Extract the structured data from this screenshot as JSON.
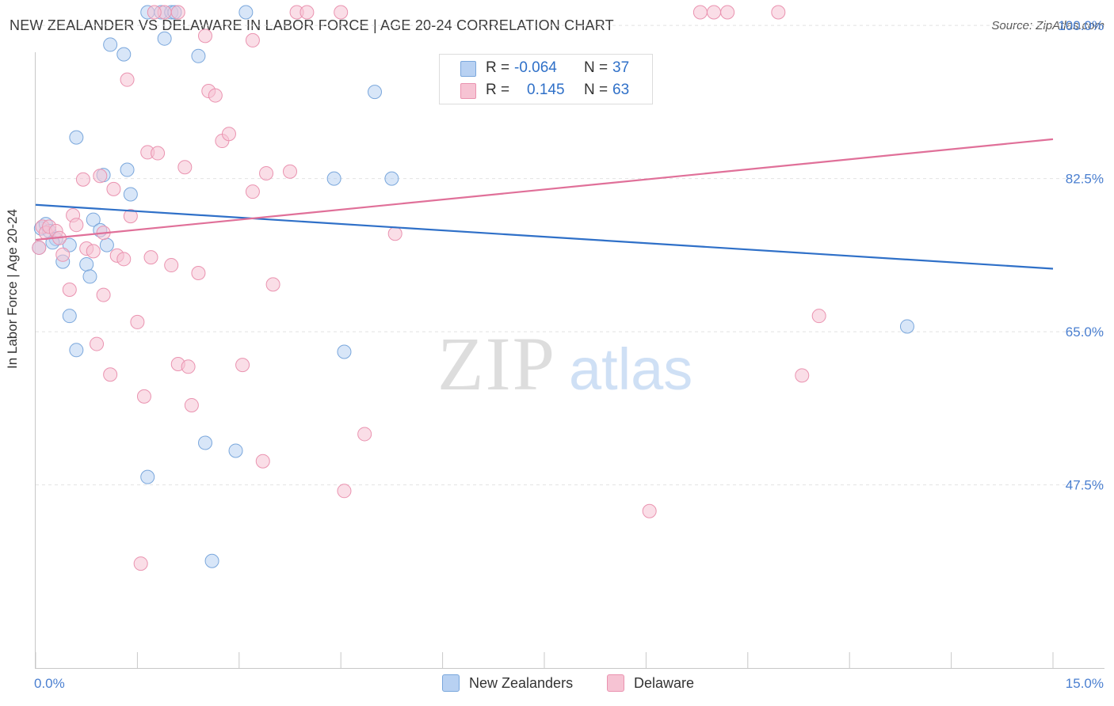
{
  "title": "NEW ZEALANDER VS DELAWARE IN LABOR FORCE | AGE 20-24 CORRELATION CHART",
  "source": {
    "prefix": "Source: ",
    "value": "ZipAtlas.com"
  },
  "watermark": {
    "zip": "ZIP",
    "atlas": "atlas"
  },
  "colors": {
    "blue_fill": "#b8d1f2",
    "blue_stroke": "#7aa7dc",
    "blue_line": "#2f70c8",
    "pink_fill": "#f6c3d3",
    "pink_stroke": "#ea93b0",
    "pink_line": "#e07099",
    "tick_label": "#4a7fd0"
  },
  "legend": {
    "r_label": "R =",
    "n_label": "N =",
    "blue": {
      "r": "-0.064",
      "n": "37"
    },
    "pink": {
      "r": "0.145",
      "n": "63"
    }
  },
  "bottom_legend": [
    "New Zealanders",
    "Delaware"
  ],
  "chart_data": {
    "type": "scatter",
    "title": "NEW ZEALANDER VS DELAWARE IN LABOR FORCE | AGE 20-24 CORRELATION CHART",
    "xlabel": "",
    "ylabel": "In Labor Force | Age 20-24",
    "xlim": [
      0,
      15
    ],
    "ylim": [
      31,
      102
    ],
    "x_tick_labels": [
      "0.0%",
      "15.0%"
    ],
    "x_tick_values": [
      0,
      15
    ],
    "y_tick_labels": [
      "100.0%",
      "82.5%",
      "65.0%",
      "47.5%"
    ],
    "y_tick_values": [
      100,
      82.5,
      65,
      47.5
    ],
    "grid": true,
    "series": [
      {
        "name": "New Zealanders",
        "color": "blue",
        "trend": {
          "x": [
            0,
            15
          ],
          "y": [
            79.5,
            72.2
          ]
        },
        "points": [
          [
            0.08,
            76.8
          ],
          [
            0.15,
            77.3
          ],
          [
            0.2,
            76.5
          ],
          [
            0.3,
            75.6
          ],
          [
            0.25,
            75.2
          ],
          [
            0.5,
            74.9
          ],
          [
            0.4,
            73.0
          ],
          [
            0.5,
            66.8
          ],
          [
            0.6,
            62.9
          ],
          [
            0.75,
            72.7
          ],
          [
            0.8,
            71.3
          ],
          [
            0.85,
            77.8
          ],
          [
            0.95,
            76.6
          ],
          [
            1.05,
            74.9
          ],
          [
            0.6,
            87.2
          ],
          [
            1.0,
            82.9
          ],
          [
            1.1,
            97.8
          ],
          [
            1.3,
            96.7
          ],
          [
            1.35,
            83.5
          ],
          [
            1.4,
            80.7
          ],
          [
            1.65,
            48.4
          ],
          [
            1.65,
            101.5
          ],
          [
            1.85,
            101.5
          ],
          [
            1.9,
            98.5
          ],
          [
            2.0,
            101.5
          ],
          [
            2.05,
            101.5
          ],
          [
            2.4,
            96.5
          ],
          [
            2.5,
            52.3
          ],
          [
            2.6,
            38.8
          ],
          [
            2.95,
            51.4
          ],
          [
            3.1,
            101.5
          ],
          [
            4.4,
            82.5
          ],
          [
            4.55,
            62.7
          ],
          [
            5.0,
            92.4
          ],
          [
            5.25,
            82.5
          ],
          [
            12.85,
            65.6
          ],
          [
            0.05,
            74.6
          ]
        ]
      },
      {
        "name": "Delaware",
        "color": "pink",
        "trend": {
          "x": [
            0,
            15
          ],
          "y": [
            75.5,
            87.0
          ]
        },
        "points": [
          [
            0.05,
            74.6
          ],
          [
            0.1,
            77.0
          ],
          [
            0.15,
            76.3
          ],
          [
            0.2,
            77.0
          ],
          [
            0.3,
            76.5
          ],
          [
            0.35,
            75.7
          ],
          [
            0.4,
            73.8
          ],
          [
            0.5,
            69.8
          ],
          [
            0.55,
            78.3
          ],
          [
            0.6,
            77.2
          ],
          [
            0.7,
            82.4
          ],
          [
            0.75,
            74.5
          ],
          [
            0.85,
            74.2
          ],
          [
            0.9,
            63.6
          ],
          [
            0.95,
            82.8
          ],
          [
            1.0,
            69.2
          ],
          [
            1.1,
            60.1
          ],
          [
            1.15,
            81.3
          ],
          [
            1.2,
            73.7
          ],
          [
            1.3,
            73.3
          ],
          [
            1.35,
            93.8
          ],
          [
            1.4,
            78.2
          ],
          [
            1.5,
            66.1
          ],
          [
            1.55,
            38.5
          ],
          [
            1.6,
            57.6
          ],
          [
            1.65,
            85.5
          ],
          [
            1.7,
            73.5
          ],
          [
            1.8,
            85.4
          ],
          [
            1.9,
            101.5
          ],
          [
            2.0,
            72.6
          ],
          [
            2.1,
            61.3
          ],
          [
            2.2,
            83.8
          ],
          [
            2.25,
            61.0
          ],
          [
            2.3,
            56.6
          ],
          [
            2.4,
            71.7
          ],
          [
            2.5,
            98.8
          ],
          [
            2.55,
            92.5
          ],
          [
            2.65,
            92.0
          ],
          [
            2.75,
            86.8
          ],
          [
            2.85,
            87.6
          ],
          [
            3.05,
            61.2
          ],
          [
            3.2,
            98.3
          ],
          [
            3.2,
            81.0
          ],
          [
            3.35,
            50.2
          ],
          [
            3.4,
            83.1
          ],
          [
            3.5,
            70.4
          ],
          [
            3.75,
            83.3
          ],
          [
            3.85,
            101.5
          ],
          [
            4.0,
            101.5
          ],
          [
            4.5,
            101.5
          ],
          [
            4.55,
            46.8
          ],
          [
            4.85,
            53.3
          ],
          [
            5.3,
            76.2
          ],
          [
            9.05,
            44.5
          ],
          [
            9.8,
            101.5
          ],
          [
            10.0,
            101.5
          ],
          [
            10.2,
            101.5
          ],
          [
            10.95,
            101.5
          ],
          [
            11.3,
            60.0
          ],
          [
            11.55,
            66.8
          ],
          [
            1.75,
            101.5
          ],
          [
            2.1,
            101.5
          ],
          [
            1.0,
            76.3
          ]
        ]
      }
    ]
  }
}
